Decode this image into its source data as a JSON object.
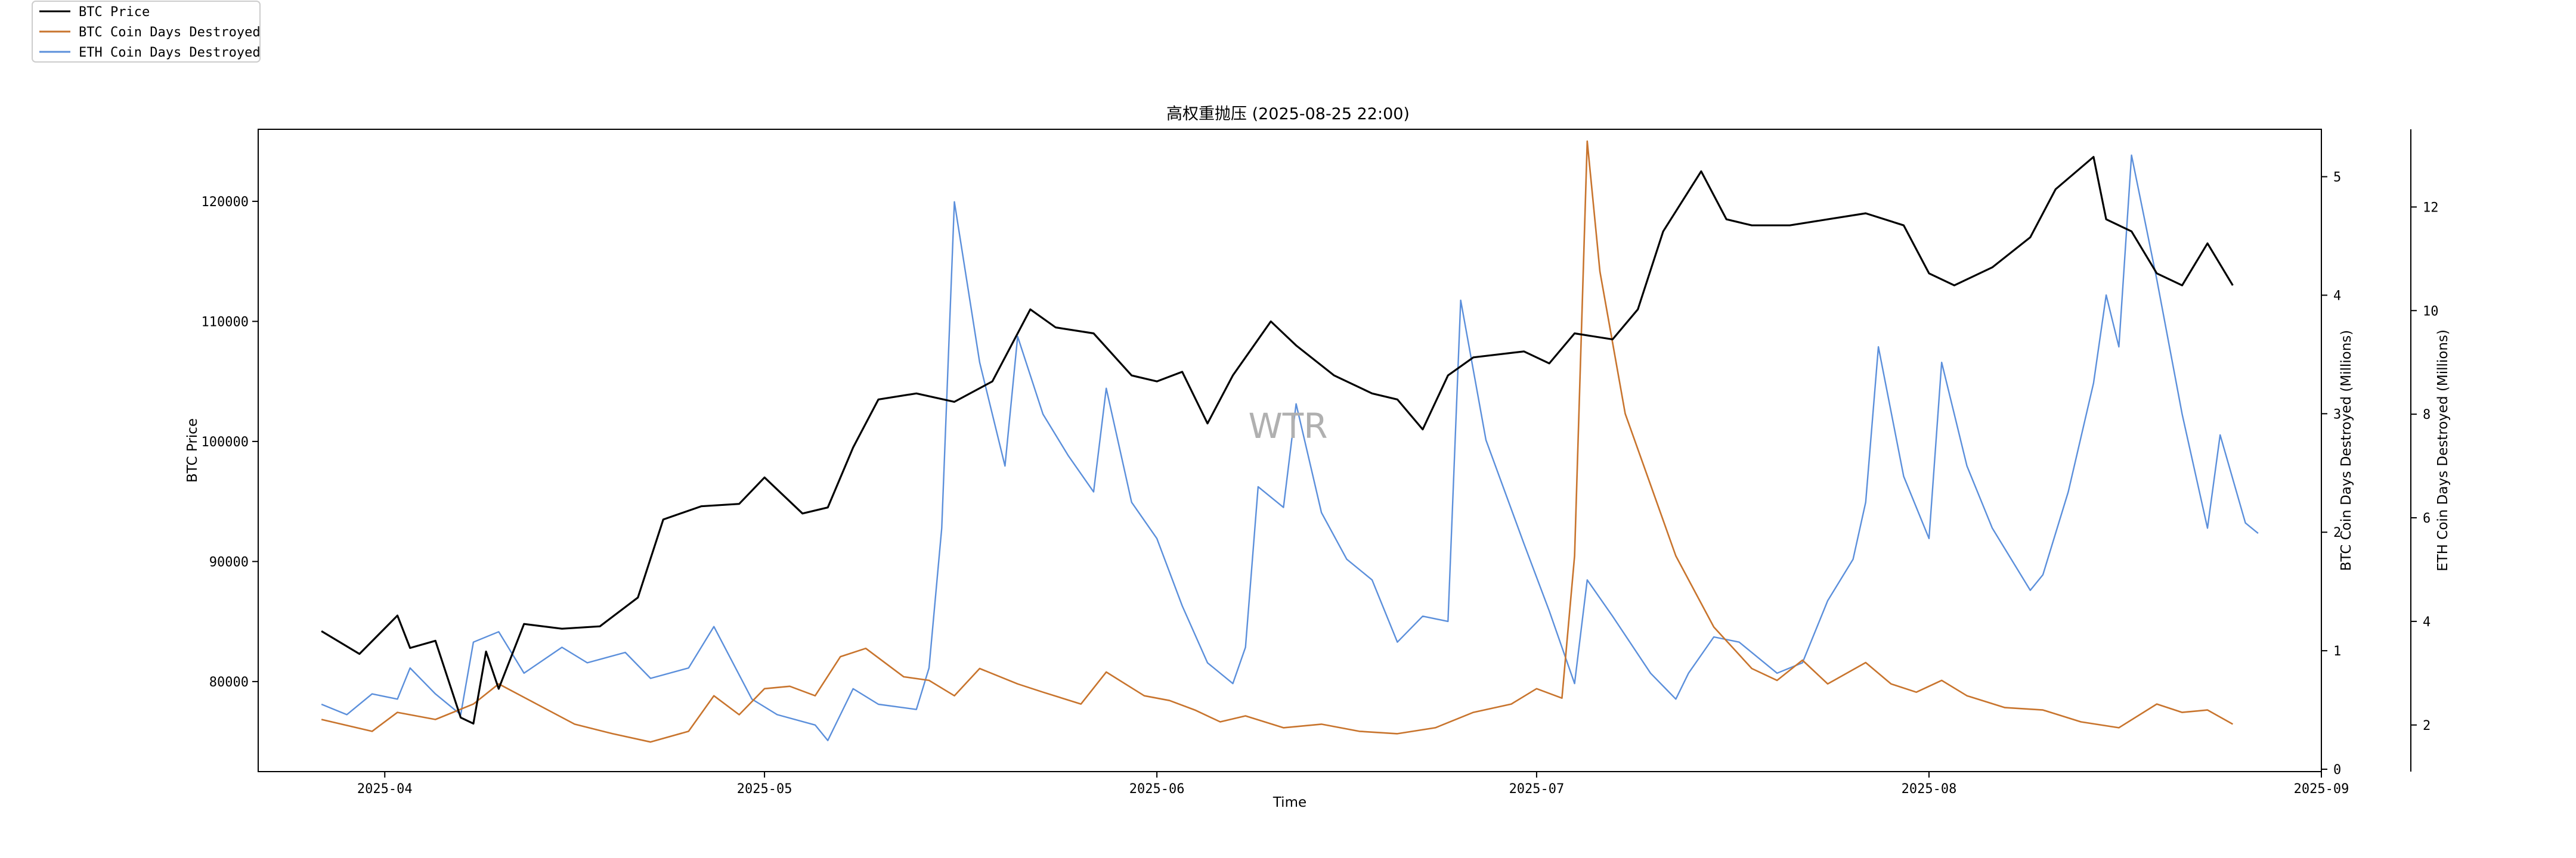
{
  "chart_data": {
    "type": "line",
    "title": "高权重抛压 (2025-08-25 22:00)",
    "watermark": "WTR",
    "xlabel": "Time",
    "ylabel_left": "BTC Price",
    "ylabel_right1": "BTC Coin Days Destroyed (Millions)",
    "ylabel_right2": "ETH Coin Days Destroyed (Millions)",
    "x_tick_labels": [
      "2025-04",
      "2025-05",
      "2025-06",
      "2025-07",
      "2025-08",
      "2025-09"
    ],
    "x_tick_dates": [
      "2025-04-01",
      "2025-05-01",
      "2025-06-01",
      "2025-07-01",
      "2025-08-01",
      "2025-09-01"
    ],
    "xlim": [
      "2025-03-22",
      "2025-09-01"
    ],
    "y_left": {
      "ylim": [
        72500,
        126000
      ],
      "ticks": [
        80000,
        90000,
        100000,
        110000,
        120000
      ],
      "tick_labels": [
        "80000",
        "90000",
        "100000",
        "110000",
        "120000"
      ]
    },
    "y_right1": {
      "ylim": [
        -0.02,
        5.4
      ],
      "ticks": [
        0,
        1,
        2,
        3,
        4,
        5
      ],
      "tick_labels": [
        "0",
        "1",
        "2",
        "3",
        "4",
        "5"
      ]
    },
    "y_right2": {
      "ylim": [
        1.1,
        13.5
      ],
      "ticks": [
        2,
        4,
        6,
        8,
        10,
        12
      ],
      "tick_labels": [
        "2",
        "4",
        "6",
        "8",
        "10",
        "12"
      ]
    },
    "legend": {
      "placement": "top-left-outside",
      "entries": [
        "BTC Price",
        "BTC Coin Days Destroyed",
        "ETH Coin Days Destroyed"
      ]
    },
    "series": [
      {
        "name": "BTC Price",
        "axis": "left",
        "color": "#000000",
        "points": [
          [
            "2025-03-27",
            84200
          ],
          [
            "2025-03-30",
            82300
          ],
          [
            "2025-04-02",
            85500
          ],
          [
            "2025-04-03",
            82800
          ],
          [
            "2025-04-05",
            83400
          ],
          [
            "2025-04-07",
            77000
          ],
          [
            "2025-04-08",
            76500
          ],
          [
            "2025-04-09",
            82500
          ],
          [
            "2025-04-10",
            79400
          ],
          [
            "2025-04-12",
            84800
          ],
          [
            "2025-04-15",
            84400
          ],
          [
            "2025-04-18",
            84600
          ],
          [
            "2025-04-21",
            87000
          ],
          [
            "2025-04-23",
            93500
          ],
          [
            "2025-04-26",
            94600
          ],
          [
            "2025-04-29",
            94800
          ],
          [
            "2025-05-01",
            97000
          ],
          [
            "2025-05-04",
            94000
          ],
          [
            "2025-05-06",
            94500
          ],
          [
            "2025-05-08",
            99500
          ],
          [
            "2025-05-10",
            103500
          ],
          [
            "2025-05-13",
            104000
          ],
          [
            "2025-05-16",
            103300
          ],
          [
            "2025-05-19",
            105000
          ],
          [
            "2025-05-22",
            111000
          ],
          [
            "2025-05-24",
            109500
          ],
          [
            "2025-05-27",
            109000
          ],
          [
            "2025-05-30",
            105500
          ],
          [
            "2025-06-01",
            105000
          ],
          [
            "2025-06-03",
            105800
          ],
          [
            "2025-06-05",
            101500
          ],
          [
            "2025-06-07",
            105500
          ],
          [
            "2025-06-10",
            110000
          ],
          [
            "2025-06-12",
            108000
          ],
          [
            "2025-06-15",
            105500
          ],
          [
            "2025-06-18",
            104000
          ],
          [
            "2025-06-20",
            103500
          ],
          [
            "2025-06-22",
            101000
          ],
          [
            "2025-06-24",
            105500
          ],
          [
            "2025-06-26",
            107000
          ],
          [
            "2025-06-30",
            107500
          ],
          [
            "2025-07-02",
            106500
          ],
          [
            "2025-07-04",
            109000
          ],
          [
            "2025-07-07",
            108500
          ],
          [
            "2025-07-09",
            111000
          ],
          [
            "2025-07-11",
            117500
          ],
          [
            "2025-07-14",
            122500
          ],
          [
            "2025-07-16",
            118500
          ],
          [
            "2025-07-18",
            118000
          ],
          [
            "2025-07-21",
            118000
          ],
          [
            "2025-07-24",
            118500
          ],
          [
            "2025-07-27",
            119000
          ],
          [
            "2025-07-30",
            118000
          ],
          [
            "2025-08-01",
            114000
          ],
          [
            "2025-08-03",
            113000
          ],
          [
            "2025-08-06",
            114500
          ],
          [
            "2025-08-09",
            117000
          ],
          [
            "2025-08-11",
            121000
          ],
          [
            "2025-08-14",
            123700
          ],
          [
            "2025-08-15",
            118500
          ],
          [
            "2025-08-17",
            117500
          ],
          [
            "2025-08-19",
            114000
          ],
          [
            "2025-08-21",
            113000
          ],
          [
            "2025-08-23",
            116500
          ],
          [
            "2025-08-25",
            113000
          ]
        ]
      },
      {
        "name": "BTC Coin Days Destroyed",
        "axis": "right1",
        "color": "#c8742d",
        "points": [
          [
            "2025-03-27",
            0.42
          ],
          [
            "2025-03-31",
            0.32
          ],
          [
            "2025-04-02",
            0.48
          ],
          [
            "2025-04-05",
            0.42
          ],
          [
            "2025-04-08",
            0.55
          ],
          [
            "2025-04-10",
            0.72
          ],
          [
            "2025-04-13",
            0.55
          ],
          [
            "2025-04-16",
            0.38
          ],
          [
            "2025-04-19",
            0.3
          ],
          [
            "2025-04-22",
            0.23
          ],
          [
            "2025-04-25",
            0.32
          ],
          [
            "2025-04-27",
            0.62
          ],
          [
            "2025-04-29",
            0.46
          ],
          [
            "2025-05-01",
            0.68
          ],
          [
            "2025-05-03",
            0.7
          ],
          [
            "2025-05-05",
            0.62
          ],
          [
            "2025-05-07",
            0.95
          ],
          [
            "2025-05-09",
            1.02
          ],
          [
            "2025-05-12",
            0.78
          ],
          [
            "2025-05-14",
            0.75
          ],
          [
            "2025-05-16",
            0.62
          ],
          [
            "2025-05-18",
            0.85
          ],
          [
            "2025-05-21",
            0.72
          ],
          [
            "2025-05-23",
            0.65
          ],
          [
            "2025-05-26",
            0.55
          ],
          [
            "2025-05-28",
            0.82
          ],
          [
            "2025-05-31",
            0.62
          ],
          [
            "2025-06-02",
            0.58
          ],
          [
            "2025-06-04",
            0.5
          ],
          [
            "2025-06-06",
            0.4
          ],
          [
            "2025-06-08",
            0.45
          ],
          [
            "2025-06-11",
            0.35
          ],
          [
            "2025-06-14",
            0.38
          ],
          [
            "2025-06-17",
            0.32
          ],
          [
            "2025-06-20",
            0.3
          ],
          [
            "2025-06-23",
            0.35
          ],
          [
            "2025-06-26",
            0.48
          ],
          [
            "2025-06-29",
            0.55
          ],
          [
            "2025-07-01",
            0.68
          ],
          [
            "2025-07-03",
            0.6
          ],
          [
            "2025-07-04",
            1.8
          ],
          [
            "2025-07-05",
            5.3
          ],
          [
            "2025-07-06",
            4.2
          ],
          [
            "2025-07-08",
            3.0
          ],
          [
            "2025-07-10",
            2.4
          ],
          [
            "2025-07-12",
            1.8
          ],
          [
            "2025-07-15",
            1.2
          ],
          [
            "2025-07-18",
            0.85
          ],
          [
            "2025-07-20",
            0.75
          ],
          [
            "2025-07-22",
            0.92
          ],
          [
            "2025-07-24",
            0.72
          ],
          [
            "2025-07-27",
            0.9
          ],
          [
            "2025-07-29",
            0.72
          ],
          [
            "2025-07-31",
            0.65
          ],
          [
            "2025-08-02",
            0.75
          ],
          [
            "2025-08-04",
            0.62
          ],
          [
            "2025-08-07",
            0.52
          ],
          [
            "2025-08-10",
            0.5
          ],
          [
            "2025-08-13",
            0.4
          ],
          [
            "2025-08-16",
            0.35
          ],
          [
            "2025-08-19",
            0.55
          ],
          [
            "2025-08-21",
            0.48
          ],
          [
            "2025-08-23",
            0.5
          ],
          [
            "2025-08-25",
            0.38
          ]
        ]
      },
      {
        "name": "ETH Coin Days Destroyed",
        "axis": "right2",
        "color": "#5b8fdb",
        "points": [
          [
            "2025-03-27",
            2.4
          ],
          [
            "2025-03-29",
            2.2
          ],
          [
            "2025-03-31",
            2.6
          ],
          [
            "2025-04-02",
            2.5
          ],
          [
            "2025-04-03",
            3.1
          ],
          [
            "2025-04-05",
            2.6
          ],
          [
            "2025-04-07",
            2.2
          ],
          [
            "2025-04-08",
            3.6
          ],
          [
            "2025-04-10",
            3.8
          ],
          [
            "2025-04-12",
            3.0
          ],
          [
            "2025-04-15",
            3.5
          ],
          [
            "2025-04-17",
            3.2
          ],
          [
            "2025-04-20",
            3.4
          ],
          [
            "2025-04-22",
            2.9
          ],
          [
            "2025-04-25",
            3.1
          ],
          [
            "2025-04-27",
            3.9
          ],
          [
            "2025-04-30",
            2.5
          ],
          [
            "2025-05-02",
            2.2
          ],
          [
            "2025-05-05",
            2.0
          ],
          [
            "2025-05-06",
            1.7
          ],
          [
            "2025-05-08",
            2.7
          ],
          [
            "2025-05-10",
            2.4
          ],
          [
            "2025-05-13",
            2.3
          ],
          [
            "2025-05-14",
            3.1
          ],
          [
            "2025-05-15",
            5.8
          ],
          [
            "2025-05-16",
            12.1
          ],
          [
            "2025-05-18",
            9.0
          ],
          [
            "2025-05-20",
            7.0
          ],
          [
            "2025-05-21",
            9.5
          ],
          [
            "2025-05-23",
            8.0
          ],
          [
            "2025-05-25",
            7.2
          ],
          [
            "2025-05-27",
            6.5
          ],
          [
            "2025-05-28",
            8.5
          ],
          [
            "2025-05-30",
            6.3
          ],
          [
            "2025-06-01",
            5.6
          ],
          [
            "2025-06-03",
            4.3
          ],
          [
            "2025-06-05",
            3.2
          ],
          [
            "2025-06-07",
            2.8
          ],
          [
            "2025-06-08",
            3.5
          ],
          [
            "2025-06-09",
            6.6
          ],
          [
            "2025-06-11",
            6.2
          ],
          [
            "2025-06-12",
            8.2
          ],
          [
            "2025-06-14",
            6.1
          ],
          [
            "2025-06-16",
            5.2
          ],
          [
            "2025-06-18",
            4.8
          ],
          [
            "2025-06-20",
            3.6
          ],
          [
            "2025-06-22",
            4.1
          ],
          [
            "2025-06-24",
            4.0
          ],
          [
            "2025-06-25",
            10.2
          ],
          [
            "2025-06-27",
            7.5
          ],
          [
            "2025-06-30",
            5.5
          ],
          [
            "2025-07-02",
            4.2
          ],
          [
            "2025-07-04",
            2.8
          ],
          [
            "2025-07-05",
            4.8
          ],
          [
            "2025-07-07",
            4.1
          ],
          [
            "2025-07-10",
            3.0
          ],
          [
            "2025-07-12",
            2.5
          ],
          [
            "2025-07-13",
            3.0
          ],
          [
            "2025-07-15",
            3.7
          ],
          [
            "2025-07-17",
            3.6
          ],
          [
            "2025-07-20",
            3.0
          ],
          [
            "2025-07-22",
            3.2
          ],
          [
            "2025-07-24",
            4.4
          ],
          [
            "2025-07-26",
            5.2
          ],
          [
            "2025-07-27",
            6.3
          ],
          [
            "2025-07-28",
            9.3
          ],
          [
            "2025-07-30",
            6.8
          ],
          [
            "2025-08-01",
            5.6
          ],
          [
            "2025-08-02",
            9.0
          ],
          [
            "2025-08-04",
            7.0
          ],
          [
            "2025-08-06",
            5.8
          ],
          [
            "2025-08-09",
            4.6
          ],
          [
            "2025-08-10",
            4.9
          ],
          [
            "2025-08-12",
            6.5
          ],
          [
            "2025-08-14",
            8.6
          ],
          [
            "2025-08-15",
            10.3
          ],
          [
            "2025-08-16",
            9.3
          ],
          [
            "2025-08-17",
            13.0
          ],
          [
            "2025-08-19",
            10.6
          ],
          [
            "2025-08-21",
            8.0
          ],
          [
            "2025-08-23",
            5.8
          ],
          [
            "2025-08-24",
            7.6
          ],
          [
            "2025-08-26",
            5.9
          ],
          [
            "2025-08-27",
            5.7
          ]
        ]
      }
    ]
  }
}
